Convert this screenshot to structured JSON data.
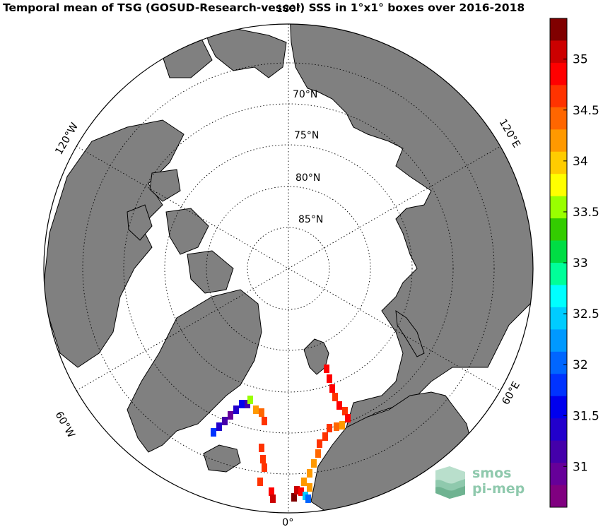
{
  "title": "Temporal mean of TSG (GOSUD-Research-vessel) SSS in 1°x1° boxes over 2016-2018",
  "map": {
    "projection": "north polar stereographic",
    "latitude_labels": [
      "70°N",
      "75°N",
      "80°N",
      "85°N"
    ],
    "longitude_labels": {
      "top": "180°",
      "bottom": "0°",
      "left_upper": "120°W",
      "left_lower": "60°W",
      "right_upper": "120°E",
      "right_lower": "60°E"
    },
    "colors": {
      "land": "#808080",
      "ocean": "#ffffff",
      "coast": "#000000",
      "grid": "#000000"
    }
  },
  "colorbar": {
    "ticks": [
      "35",
      "34.5",
      "34",
      "33.5",
      "33",
      "32.5",
      "32",
      "31.5",
      "31"
    ],
    "range": [
      30.6,
      35.4
    ],
    "colors": [
      "#800000",
      "#cc0000",
      "#ff0000",
      "#ff3300",
      "#ff6600",
      "#ff9900",
      "#ffcc00",
      "#ffff00",
      "#99ff00",
      "#33cc00",
      "#00dd44",
      "#00ff99",
      "#00ffff",
      "#00ccff",
      "#0099ff",
      "#0066ff",
      "#0033ff",
      "#0000ee",
      "#2200cc",
      "#4400aa",
      "#660099",
      "#800080"
    ]
  },
  "logo": {
    "line1": "smos",
    "line2": "pi-mep",
    "color": "#8fc9ad"
  }
}
